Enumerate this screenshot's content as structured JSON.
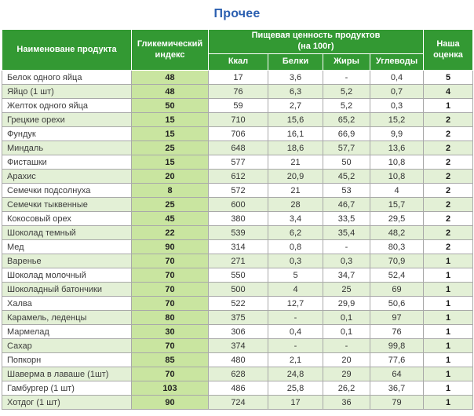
{
  "title": "Прочее",
  "colors": {
    "title_blue": "#2b5fb0",
    "header_green": "#339933",
    "gi_cell_green": "#c9e5a0",
    "stripe_green": "#e3f0d6",
    "row_white": "#ffffff",
    "border_gray": "#a9a9a9"
  },
  "headers": {
    "product": "Наименоване продукта",
    "glycemic_index": "Гликемический индекс",
    "nutrition_group_line1": "Пищевая ценность продуктов",
    "nutrition_group_line2": "(на 100г)",
    "kcal": "Ккал",
    "protein": "Белки",
    "fat": "Жиры",
    "carbs": "Углеводы",
    "score": "Наша оценка"
  },
  "chart_data": {
    "type": "table",
    "title": "Прочее",
    "column_group": "Пищевая ценность продуктов (на 100г)",
    "columns": [
      "Наименоване продукта",
      "Гликемический индекс",
      "Ккал",
      "Белки",
      "Жиры",
      "Углеводы",
      "Наша оценка"
    ],
    "rows": [
      [
        "Белок одного яйца",
        "48",
        "17",
        "3,6",
        "-",
        "0,4",
        "5"
      ],
      [
        "Яйцо (1 шт)",
        "48",
        "76",
        "6,3",
        "5,2",
        "0,7",
        "4"
      ],
      [
        "Желток одного яйца",
        "50",
        "59",
        "2,7",
        "5,2",
        "0,3",
        "1"
      ],
      [
        "Грецкие орехи",
        "15",
        "710",
        "15,6",
        "65,2",
        "15,2",
        "2"
      ],
      [
        "Фундук",
        "15",
        "706",
        "16,1",
        "66,9",
        "9,9",
        "2"
      ],
      [
        "Миндаль",
        "25",
        "648",
        "18,6",
        "57,7",
        "13,6",
        "2"
      ],
      [
        "Фисташки",
        "15",
        "577",
        "21",
        "50",
        "10,8",
        "2"
      ],
      [
        "Арахис",
        "20",
        "612",
        "20,9",
        "45,2",
        "10,8",
        "2"
      ],
      [
        "Семечки подсолнуха",
        "8",
        "572",
        "21",
        "53",
        "4",
        "2"
      ],
      [
        "Семечки тыквенные",
        "25",
        "600",
        "28",
        "46,7",
        "15,7",
        "2"
      ],
      [
        "Кокосовый орех",
        "45",
        "380",
        "3,4",
        "33,5",
        "29,5",
        "2"
      ],
      [
        "Шоколад темный",
        "22",
        "539",
        "6,2",
        "35,4",
        "48,2",
        "2"
      ],
      [
        "Мед",
        "90",
        "314",
        "0,8",
        "-",
        "80,3",
        "2"
      ],
      [
        "Варенье",
        "70",
        "271",
        "0,3",
        "0,3",
        "70,9",
        "1"
      ],
      [
        "Шоколад молочный",
        "70",
        "550",
        "5",
        "34,7",
        "52,4",
        "1"
      ],
      [
        "Шоколадный батончики",
        "70",
        "500",
        "4",
        "25",
        "69",
        "1"
      ],
      [
        "Халва",
        "70",
        "522",
        "12,7",
        "29,9",
        "50,6",
        "1"
      ],
      [
        "Карамель, леденцы",
        "80",
        "375",
        "-",
        "0,1",
        "97",
        "1"
      ],
      [
        "Мармелад",
        "30",
        "306",
        "0,4",
        "0,1",
        "76",
        "1"
      ],
      [
        "Сахар",
        "70",
        "374",
        "-",
        "-",
        "99,8",
        "1"
      ],
      [
        "Попкорн",
        "85",
        "480",
        "2,1",
        "20",
        "77,6",
        "1"
      ],
      [
        "Шаверма в лаваше (1шт)",
        "70",
        "628",
        "24,8",
        "29",
        "64",
        "1"
      ],
      [
        "Гамбургер (1 шт)",
        "103",
        "486",
        "25,8",
        "26,2",
        "36,7",
        "1"
      ],
      [
        "Хотдог (1 шт)",
        "90",
        "724",
        "17",
        "36",
        "79",
        "1"
      ]
    ]
  }
}
